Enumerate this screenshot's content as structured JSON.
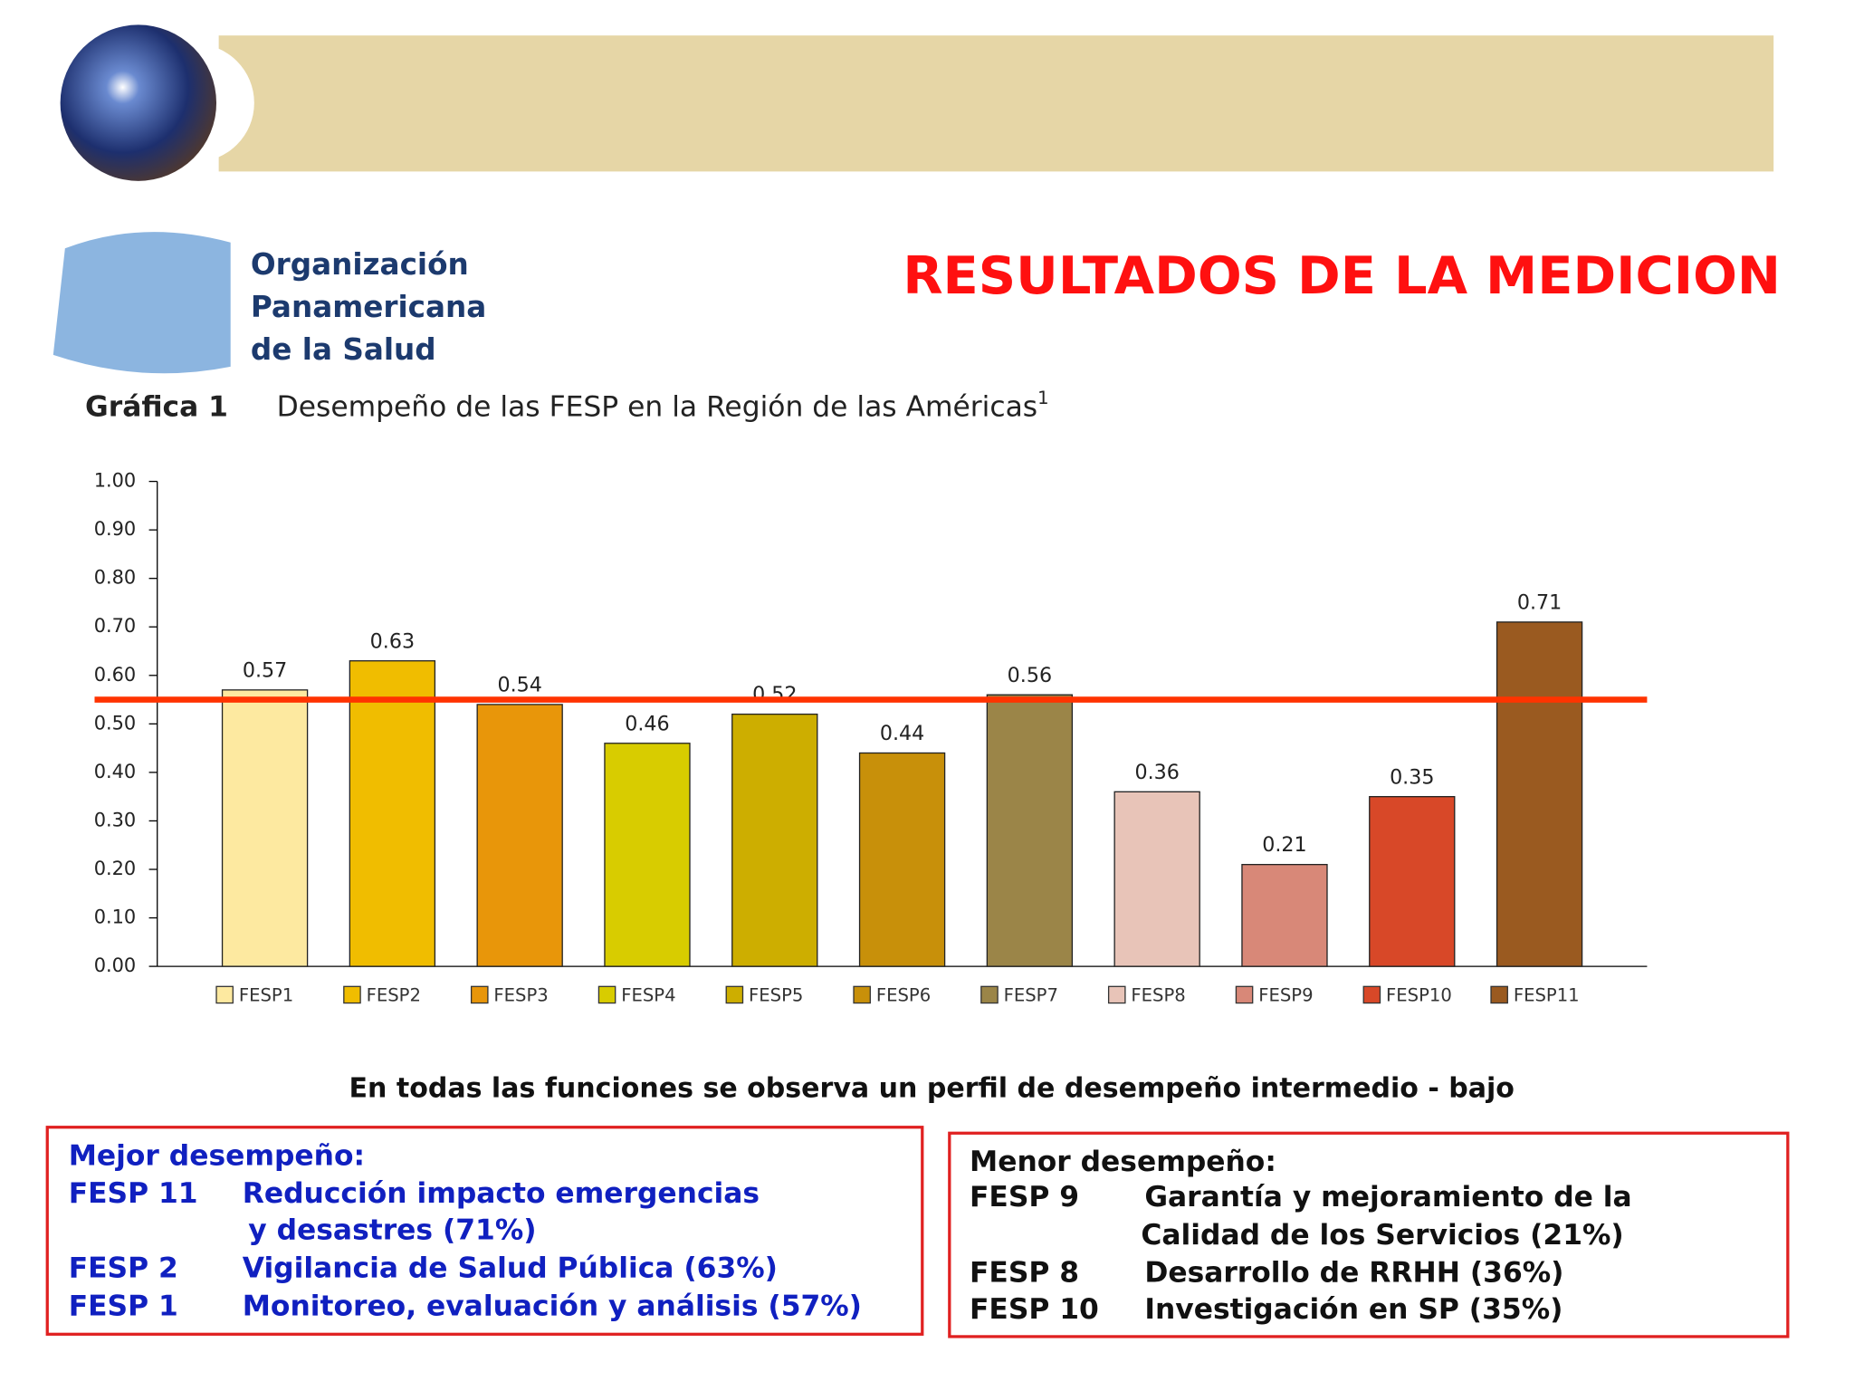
{
  "header": {
    "org_name": [
      "Organización",
      "Panamericana",
      "de la Salud"
    ],
    "title": "RESULTADOS DE LA MEDICION"
  },
  "chart_data": {
    "type": "bar",
    "label": "Gráfica 1",
    "title": "Desempeño de las FESP en la Región de las Américas",
    "title_footnote": "1",
    "categories": [
      "FESP1",
      "FESP2",
      "FESP3",
      "FESP4",
      "FESP5",
      "FESP6",
      "FESP7",
      "FESP8",
      "FESP9",
      "FESP10",
      "FESP11"
    ],
    "values": [
      0.57,
      0.63,
      0.54,
      0.46,
      0.52,
      0.44,
      0.56,
      0.36,
      0.21,
      0.35,
      0.71
    ],
    "colors": [
      "#fde9a0",
      "#f0bd00",
      "#e8960a",
      "#d8cc00",
      "#cdae00",
      "#c8900a",
      "#9b8548",
      "#e8c4b8",
      "#d88878",
      "#d84828",
      "#9a5a20"
    ],
    "ylim": [
      0,
      1
    ],
    "yticks": [
      {
        "value": 0,
        "label": "0.00"
      },
      {
        "value": 0.1,
        "label": "0.10"
      },
      {
        "value": 0.2,
        "label": "0.20"
      },
      {
        "value": 0.3,
        "label": "0.30"
      },
      {
        "value": 0.4,
        "label": "0.40"
      },
      {
        "value": 0.5,
        "label": "0.50"
      },
      {
        "value": 0.6,
        "label": "0.60"
      },
      {
        "value": 0.7,
        "label": "0.70"
      },
      {
        "value": 0.8,
        "label": "0.80"
      },
      {
        "value": 0.9,
        "label": "0.90"
      },
      {
        "value": 1,
        "label": "1.00"
      }
    ],
    "reference_line": 0.55,
    "reference_color": "#ff3300",
    "legend": "bottom"
  },
  "note": "En todas las funciones se observa un perfil de desempeño intermedio - bajo",
  "best": {
    "heading": "Mejor desempeño:",
    "items": [
      {
        "code": "FESP 11",
        "lines": [
          "Reducción impacto emergencias",
          "y desastres (71%)"
        ]
      },
      {
        "code": "FESP 2",
        "lines": [
          "Vigilancia de Salud Pública (63%)"
        ]
      },
      {
        "code": "FESP 1",
        "lines": [
          "Monitoreo, evaluación y análisis (57%)"
        ]
      }
    ]
  },
  "worst": {
    "heading": "Menor desempeño:",
    "items": [
      {
        "code": "FESP 9",
        "lines": [
          "Garantía y mejoramiento de la",
          "Calidad de los Servicios (21%)"
        ]
      },
      {
        "code": "FESP 8",
        "lines": [
          "Desarrollo de RRHH (36%)"
        ]
      },
      {
        "code": "FESP 10",
        "lines": [
          "Investigación en SP (35%)"
        ]
      }
    ]
  }
}
